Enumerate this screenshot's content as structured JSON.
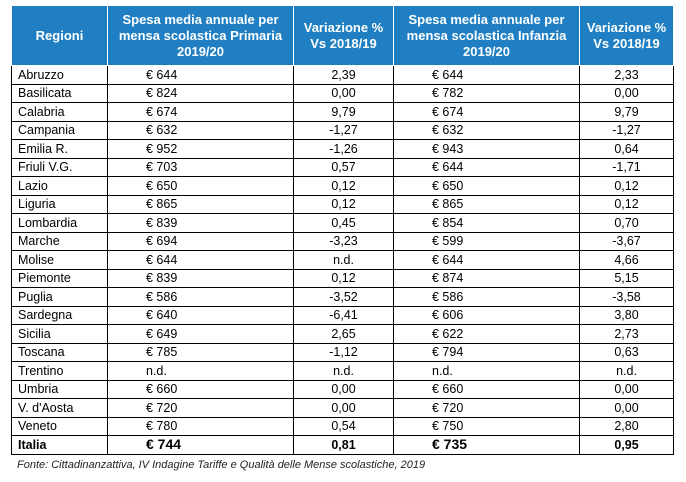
{
  "table": {
    "headers": [
      "Regioni",
      "Spesa media annuale per mensa scolastica Primaria 2019/20",
      "Variazione % Vs 2018/19",
      "Spesa media annuale per mensa scolastica Infanzia 2019/20",
      "Variazione % Vs 2018/19"
    ],
    "rows": [
      {
        "region": "Abruzzo",
        "primaria": "€ 644",
        "var_primaria": "2,39",
        "infanzia": "€ 644",
        "var_infanzia": "2,33"
      },
      {
        "region": "Basilicata",
        "primaria": "€ 824",
        "var_primaria": "0,00",
        "infanzia": "€ 782",
        "var_infanzia": "0,00"
      },
      {
        "region": "Calabria",
        "primaria": "€ 674",
        "var_primaria": "9,79",
        "infanzia": "€ 674",
        "var_infanzia": "9,79"
      },
      {
        "region": "Campania",
        "primaria": "€ 632",
        "var_primaria": "-1,27",
        "infanzia": "€ 632",
        "var_infanzia": "-1,27"
      },
      {
        "region": "Emilia R.",
        "primaria": "€ 952",
        "var_primaria": "-1,26",
        "infanzia": "€ 943",
        "var_infanzia": "0,64"
      },
      {
        "region": "Friuli V.G.",
        "primaria": "€ 703",
        "var_primaria": "0,57",
        "infanzia": "€ 644",
        "var_infanzia": "-1,71"
      },
      {
        "region": "Lazio",
        "primaria": "€ 650",
        "var_primaria": "0,12",
        "infanzia": "€ 650",
        "var_infanzia": "0,12"
      },
      {
        "region": "Liguria",
        "primaria": "€ 865",
        "var_primaria": "0,12",
        "infanzia": "€ 865",
        "var_infanzia": "0,12"
      },
      {
        "region": "Lombardia",
        "primaria": "€ 839",
        "var_primaria": "0,45",
        "infanzia": "€ 854",
        "var_infanzia": "0,70"
      },
      {
        "region": "Marche",
        "primaria": "€ 694",
        "var_primaria": "-3,23",
        "infanzia": "€ 599",
        "var_infanzia": "-3,67"
      },
      {
        "region": "Molise",
        "primaria": "€ 644",
        "var_primaria": "n.d.",
        "infanzia": "€ 644",
        "var_infanzia": "4,66"
      },
      {
        "region": "Piemonte",
        "primaria": "€ 839",
        "var_primaria": "0,12",
        "infanzia": "€ 874",
        "var_infanzia": "5,15"
      },
      {
        "region": "Puglia",
        "primaria": "€ 586",
        "var_primaria": "-3,52",
        "infanzia": "€ 586",
        "var_infanzia": "-3,58"
      },
      {
        "region": "Sardegna",
        "primaria": "€ 640",
        "var_primaria": "-6,41",
        "infanzia": "€ 606",
        "var_infanzia": "3,80"
      },
      {
        "region": "Sicilia",
        "primaria": "€ 649",
        "var_primaria": "2,65",
        "infanzia": "€ 622",
        "var_infanzia": "2,73"
      },
      {
        "region": "Toscana",
        "primaria": "€ 785",
        "var_primaria": "-1,12",
        "infanzia": "€ 794",
        "var_infanzia": "0,63"
      },
      {
        "region": "Trentino",
        "primaria": "n.d.",
        "var_primaria": "n.d.",
        "infanzia": "n.d.",
        "var_infanzia": "n.d."
      },
      {
        "region": "Umbria",
        "primaria": "€ 660",
        "var_primaria": "0,00",
        "infanzia": "€ 660",
        "var_infanzia": "0,00"
      },
      {
        "region": "V. d'Aosta",
        "primaria": "€ 720",
        "var_primaria": "0,00",
        "infanzia": "€ 720",
        "var_infanzia": "0,00"
      },
      {
        "region": "Veneto",
        "primaria": "€ 780",
        "var_primaria": "0,54",
        "infanzia": "€ 750",
        "var_infanzia": "2,80"
      }
    ],
    "total": {
      "region": "Italia",
      "primaria": "€ 744",
      "var_primaria": "0,81",
      "infanzia": "€ 735",
      "var_infanzia": "0,95"
    }
  },
  "source": "Fonte: Cittadinanzattiva, IV Indagine Tariffe e Qualità delle Mense scolastiche,  2019",
  "colors": {
    "header_bg": "#1f7fc2",
    "header_text": "#ffffff",
    "border": "#000000"
  }
}
